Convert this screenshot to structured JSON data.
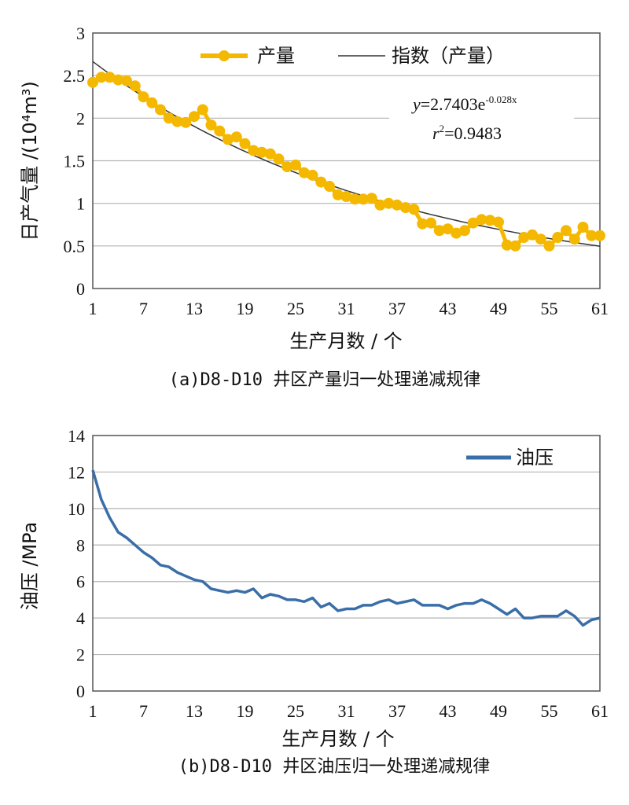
{
  "chart_data": [
    {
      "type": "line",
      "xlabel": "生产月数 / 个",
      "ylabel": "日产气量 /(10⁴m³)",
      "ylim": [
        0,
        3
      ],
      "yticks": [
        "0",
        "0.5",
        "1",
        "1.5",
        "2",
        "2.5",
        "3"
      ],
      "xlim": [
        1,
        61
      ],
      "xticks": [
        "1",
        "7",
        "13",
        "19",
        "25",
        "31",
        "37",
        "43",
        "49",
        "55",
        "61"
      ],
      "grid": true,
      "legend_position": "top",
      "caption": "(a)D8-D10 井区产量归一处理递减规律",
      "annotation": {
        "eq_lhs": "y",
        "eq_rhs": "=2.7403e",
        "eq_exp": "-0.028x",
        "r2_lhs": "r",
        "r2_sup": "2",
        "r2_rhs": "=0.9483"
      },
      "colors": {
        "series": "#f5b800",
        "fit": "#333333",
        "grid": "#b3b3b3"
      },
      "x": [
        1,
        2,
        3,
        4,
        5,
        6,
        7,
        8,
        9,
        10,
        11,
        12,
        13,
        14,
        15,
        16,
        17,
        18,
        19,
        20,
        21,
        22,
        23,
        24,
        25,
        26,
        27,
        28,
        29,
        30,
        31,
        32,
        33,
        34,
        35,
        36,
        37,
        38,
        39,
        40,
        41,
        42,
        43,
        44,
        45,
        46,
        47,
        48,
        49,
        50,
        51,
        52,
        53,
        54,
        55,
        56,
        57,
        58,
        59,
        60,
        61
      ],
      "series": [
        {
          "name": "产量",
          "values": [
            2.42,
            2.48,
            2.48,
            2.45,
            2.44,
            2.38,
            2.25,
            2.18,
            2.1,
            2.0,
            1.96,
            1.95,
            2.02,
            2.1,
            1.92,
            1.85,
            1.75,
            1.78,
            1.7,
            1.62,
            1.6,
            1.58,
            1.52,
            1.43,
            1.45,
            1.36,
            1.33,
            1.25,
            1.2,
            1.1,
            1.08,
            1.05,
            1.05,
            1.06,
            0.98,
            1.0,
            0.98,
            0.95,
            0.93,
            0.76,
            0.77,
            0.68,
            0.7,
            0.65,
            0.68,
            0.77,
            0.81,
            0.8,
            0.78,
            0.51,
            0.5,
            0.6,
            0.63,
            0.58,
            0.5,
            0.6,
            0.68,
            0.58,
            0.72,
            0.62,
            0.62
          ]
        },
        {
          "name": "指数（产量）",
          "fit": {
            "a": 2.7403,
            "b": -0.028
          }
        }
      ]
    },
    {
      "type": "line",
      "xlabel": "生产月数 / 个",
      "ylabel": "油压 /MPa",
      "ylim": [
        0,
        14
      ],
      "yticks": [
        "0",
        "2",
        "4",
        "6",
        "8",
        "10",
        "12",
        "14"
      ],
      "xlim": [
        1,
        61
      ],
      "xticks": [
        "1",
        "7",
        "13",
        "19",
        "25",
        "31",
        "37",
        "43",
        "49",
        "55",
        "61"
      ],
      "grid": true,
      "legend_position": "top-right",
      "caption": "(b)D8-D10 井区油压归一处理递减规律",
      "colors": {
        "series": "#3a6ea8",
        "grid": "#b3b3b3"
      },
      "x": [
        1,
        2,
        3,
        4,
        5,
        6,
        7,
        8,
        9,
        10,
        11,
        12,
        13,
        14,
        15,
        16,
        17,
        18,
        19,
        20,
        21,
        22,
        23,
        24,
        25,
        26,
        27,
        28,
        29,
        30,
        31,
        32,
        33,
        34,
        35,
        36,
        37,
        38,
        39,
        40,
        41,
        42,
        43,
        44,
        45,
        46,
        47,
        48,
        49,
        50,
        51,
        52,
        53,
        54,
        55,
        56,
        57,
        58,
        59,
        60,
        61
      ],
      "series": [
        {
          "name": "油压",
          "values": [
            12.1,
            10.5,
            9.5,
            8.7,
            8.4,
            8.0,
            7.6,
            7.3,
            6.9,
            6.8,
            6.5,
            6.3,
            6.1,
            6.0,
            5.6,
            5.5,
            5.4,
            5.5,
            5.4,
            5.6,
            5.1,
            5.3,
            5.2,
            5.0,
            5.0,
            4.9,
            5.1,
            4.6,
            4.8,
            4.4,
            4.5,
            4.5,
            4.7,
            4.7,
            4.9,
            5.0,
            4.8,
            4.9,
            5.0,
            4.7,
            4.7,
            4.7,
            4.5,
            4.7,
            4.8,
            4.8,
            5.0,
            4.8,
            4.5,
            4.2,
            4.5,
            4.0,
            4.0,
            4.1,
            4.1,
            4.1,
            4.4,
            4.1,
            3.6,
            3.9,
            4.0
          ]
        }
      ]
    }
  ]
}
